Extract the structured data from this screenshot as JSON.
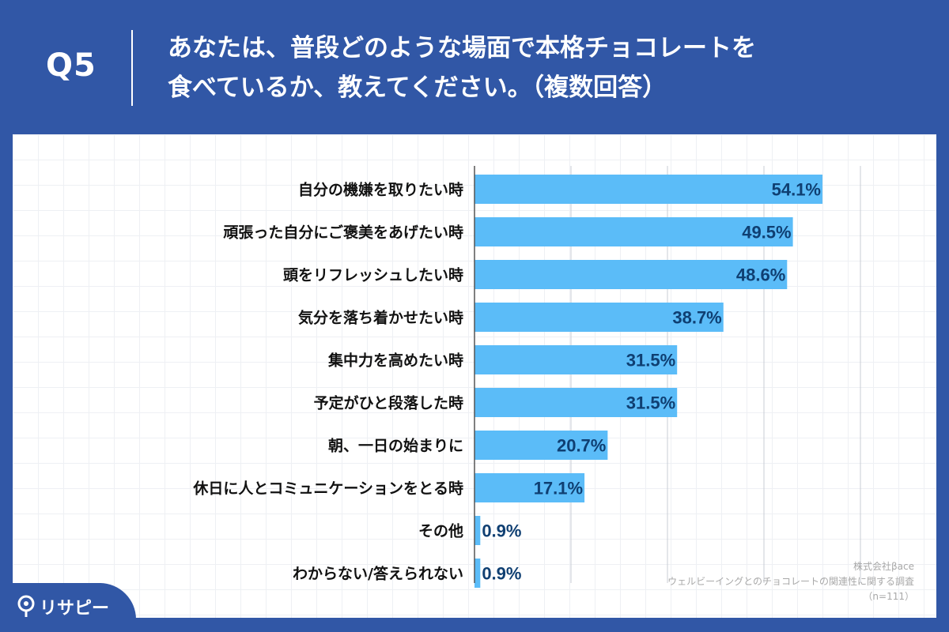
{
  "header": {
    "question_label": "Q5",
    "title_line1": "あなたは、普段どのような場面で本格チョコレートを",
    "title_line2": "食べているか、教えてください。（複数回答）"
  },
  "colors": {
    "background": "#3157a6",
    "bar": "#5bbcf8",
    "value_text": "#0f3f72",
    "label_text": "#111111",
    "grid": "#c8ccd4"
  },
  "chart_data": {
    "type": "bar",
    "orientation": "horizontal",
    "categories": [
      "自分の機嫌を取りたい時",
      "頑張った自分にご褒美をあげたい時",
      "頭をリフレッシュしたい時",
      "気分を落ち着かせたい時",
      "集中力を高めたい時",
      "予定がひと段落した時",
      "朝、一日の始まりに",
      "休日に人とコミュニケーションをとる時",
      "その他",
      "わからない/答えられない"
    ],
    "values": [
      54.1,
      49.5,
      48.6,
      38.7,
      31.5,
      31.5,
      20.7,
      17.1,
      0.9,
      0.9
    ],
    "value_labels": [
      "54.1%",
      "49.5%",
      "48.6%",
      "38.7%",
      "31.5%",
      "31.5%",
      "20.7%",
      "17.1%",
      "0.9%",
      "0.9%"
    ],
    "xlim": [
      0,
      60
    ],
    "grid_x": true,
    "grid_step": 15
  },
  "footer": {
    "logo_text": "リサピー",
    "credit_line1": "株式会社βace",
    "credit_line2": "ウェルビーイングとのチョコレートの関連性に関する調査",
    "credit_line3": "（n=111）"
  }
}
